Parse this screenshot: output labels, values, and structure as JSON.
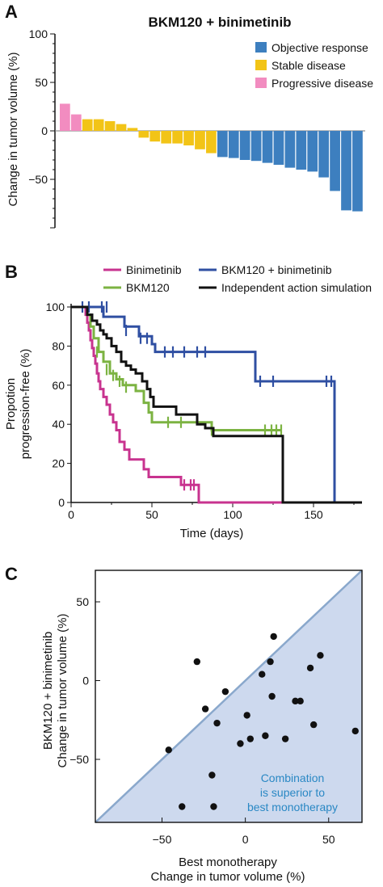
{
  "panels": {
    "a": {
      "letter": "A",
      "chart_data": {
        "type": "bar",
        "title": "BKM120 + binimetinib",
        "ylabel": "Change in tumor volume (%)",
        "ylim": [
          -100,
          100
        ],
        "yticks": [
          100,
          50,
          0,
          -50
        ],
        "ytick_labels": [
          "100",
          "50",
          "0",
          "−50"
        ],
        "legend": [
          {
            "label": "Objective response",
            "color": "#3d7fbf"
          },
          {
            "label": "Stable disease",
            "color": "#f2c417"
          },
          {
            "label": "Progressive disease",
            "color": "#f28cc0"
          }
        ],
        "legend_position": "top-right",
        "bars": [
          {
            "value": 28,
            "group": 2
          },
          {
            "value": 17,
            "group": 2
          },
          {
            "value": 12,
            "group": 1
          },
          {
            "value": 12,
            "group": 1
          },
          {
            "value": 10,
            "group": 1
          },
          {
            "value": 7,
            "group": 1
          },
          {
            "value": 3,
            "group": 1
          },
          {
            "value": -7,
            "group": 1
          },
          {
            "value": -11,
            "group": 1
          },
          {
            "value": -13,
            "group": 1
          },
          {
            "value": -13,
            "group": 1
          },
          {
            "value": -15,
            "group": 1
          },
          {
            "value": -19,
            "group": 1
          },
          {
            "value": -23,
            "group": 1
          },
          {
            "value": -27,
            "group": 0
          },
          {
            "value": -28,
            "group": 0
          },
          {
            "value": -30,
            "group": 0
          },
          {
            "value": -31,
            "group": 0
          },
          {
            "value": -33,
            "group": 0
          },
          {
            "value": -35,
            "group": 0
          },
          {
            "value": -38,
            "group": 0
          },
          {
            "value": -40,
            "group": 0
          },
          {
            "value": -42,
            "group": 0
          },
          {
            "value": -48,
            "group": 0
          },
          {
            "value": -62,
            "group": 0
          },
          {
            "value": -82,
            "group": 0
          },
          {
            "value": -83,
            "group": 0
          }
        ]
      }
    },
    "b": {
      "letter": "B",
      "chart_data": {
        "type": "line",
        "xlabel": "Time (days)",
        "ylabel_lines": [
          "Propotion",
          "progression-free (%)"
        ],
        "xlim": [
          0,
          180
        ],
        "ylim": [
          0,
          100
        ],
        "xticks": [
          0,
          50,
          100,
          150
        ],
        "yticks": [
          0,
          20,
          40,
          60,
          80,
          100
        ],
        "legend_position": "top",
        "series": [
          {
            "name": "Binimetinib",
            "color": "#c8338f",
            "steps": [
              [
                0,
                100
              ],
              [
                8,
                100
              ],
              [
                9,
                96
              ],
              [
                10,
                92
              ],
              [
                11,
                88
              ],
              [
                12,
                83
              ],
              [
                13,
                79
              ],
              [
                14,
                75
              ],
              [
                15,
                71
              ],
              [
                16,
                66
              ],
              [
                17,
                62
              ],
              [
                18,
                58
              ],
              [
                20,
                54
              ],
              [
                22,
                50
              ],
              [
                24,
                45
              ],
              [
                26,
                41
              ],
              [
                28,
                37
              ],
              [
                30,
                31
              ],
              [
                33,
                27
              ],
              [
                36,
                22
              ],
              [
                45,
                17
              ],
              [
                48,
                13
              ],
              [
                63,
                13
              ],
              [
                68,
                9
              ],
              [
                77,
                9
              ],
              [
                79,
                0
              ],
              [
                180,
                0
              ]
            ],
            "censor": [
              [
                70,
                9
              ],
              [
                74,
                9
              ],
              [
                76,
                9
              ]
            ]
          },
          {
            "name": "BKM120 + binimetinib",
            "color": "#2f4fa2",
            "steps": [
              [
                0,
                100
              ],
              [
                18,
                100
              ],
              [
                20,
                95
              ],
              [
                33,
                90
              ],
              [
                42,
                85
              ],
              [
                50,
                81
              ],
              [
                52,
                77
              ],
              [
                113,
                77
              ],
              [
                114,
                62
              ],
              [
                162,
                62
              ],
              [
                163,
                0
              ],
              [
                180,
                0
              ]
            ],
            "censor": [
              [
                7,
                100
              ],
              [
                11,
                100
              ],
              [
                19,
                100
              ],
              [
                22,
                100
              ],
              [
                34,
                88
              ],
              [
                43,
                84
              ],
              [
                47,
                84
              ],
              [
                58,
                77
              ],
              [
                63,
                77
              ],
              [
                70,
                77
              ],
              [
                78,
                77
              ],
              [
                83,
                77
              ],
              [
                117,
                62
              ],
              [
                125,
                62
              ],
              [
                158,
                62
              ],
              [
                161,
                62
              ]
            ]
          },
          {
            "name": "BKM120",
            "color": "#7cb342",
            "steps": [
              [
                0,
                100
              ],
              [
                8,
                100
              ],
              [
                10,
                96
              ],
              [
                12,
                90
              ],
              [
                14,
                84
              ],
              [
                17,
                77
              ],
              [
                20,
                72
              ],
              [
                24,
                66
              ],
              [
                28,
                63
              ],
              [
                32,
                60
              ],
              [
                40,
                57
              ],
              [
                45,
                51
              ],
              [
                48,
                46
              ],
              [
                50,
                41
              ],
              [
                85,
                41
              ],
              [
                87,
                37
              ],
              [
                130,
                37
              ]
            ],
            "censor": [
              [
                16,
                77
              ],
              [
                22,
                68
              ],
              [
                26,
                65
              ],
              [
                30,
                62
              ],
              [
                34,
                59
              ],
              [
                60,
                41
              ],
              [
                68,
                41
              ],
              [
                87,
                37
              ],
              [
                120,
                37
              ],
              [
                124,
                37
              ],
              [
                127,
                37
              ],
              [
                130,
                37
              ]
            ]
          },
          {
            "name": "Independent action simulation",
            "color": "#111111",
            "steps": [
              [
                0,
                100
              ],
              [
                7,
                100
              ],
              [
                10,
                96
              ],
              [
                13,
                93
              ],
              [
                16,
                91
              ],
              [
                18,
                88
              ],
              [
                20,
                86
              ],
              [
                22,
                84
              ],
              [
                25,
                80
              ],
              [
                28,
                77
              ],
              [
                31,
                72
              ],
              [
                34,
                70
              ],
              [
                37,
                68
              ],
              [
                40,
                66
              ],
              [
                44,
                62
              ],
              [
                47,
                58
              ],
              [
                49,
                54
              ],
              [
                51,
                49
              ],
              [
                60,
                49
              ],
              [
                65,
                45
              ],
              [
                72,
                45
              ],
              [
                78,
                40
              ],
              [
                83,
                38
              ],
              [
                88,
                34
              ],
              [
                130,
                34
              ],
              [
                131,
                0
              ],
              [
                180,
                0
              ]
            ],
            "censor": []
          }
        ]
      }
    },
    "c": {
      "letter": "C",
      "chart_data": {
        "type": "scatter",
        "xlabel_lines": [
          "Best monotherapy",
          "Change in tumor volume (%)"
        ],
        "ylabel_lines": [
          "BKM120 + binimetinib",
          "Change in tumor volume (%)"
        ],
        "xlim": [
          -90,
          70
        ],
        "ylim": [
          -90,
          70
        ],
        "xticks": [
          -50,
          0,
          50
        ],
        "xtick_labels": [
          "−50",
          "0",
          "50"
        ],
        "yticks": [
          50,
          0,
          -50
        ],
        "ytick_labels": [
          "50",
          "0",
          "−50"
        ],
        "annotation": [
          "Combination",
          "is superior to",
          "best monotherapy"
        ],
        "region_color": "#cdd9ee",
        "diagonal_color": "#8aa8cc",
        "points": [
          [
            -46,
            -44
          ],
          [
            -38,
            -80
          ],
          [
            -29,
            12
          ],
          [
            -24,
            -18
          ],
          [
            -20,
            -60
          ],
          [
            -19,
            -80
          ],
          [
            -17,
            -27
          ],
          [
            -12,
            -7
          ],
          [
            -3,
            -40
          ],
          [
            1,
            -22
          ],
          [
            3,
            -37
          ],
          [
            10,
            4
          ],
          [
            12,
            -35
          ],
          [
            15,
            12
          ],
          [
            16,
            -10
          ],
          [
            17,
            28
          ],
          [
            24,
            -37
          ],
          [
            30,
            -13
          ],
          [
            33,
            -13
          ],
          [
            39,
            8
          ],
          [
            41,
            -28
          ],
          [
            45,
            16
          ],
          [
            66,
            -32
          ]
        ]
      }
    }
  }
}
